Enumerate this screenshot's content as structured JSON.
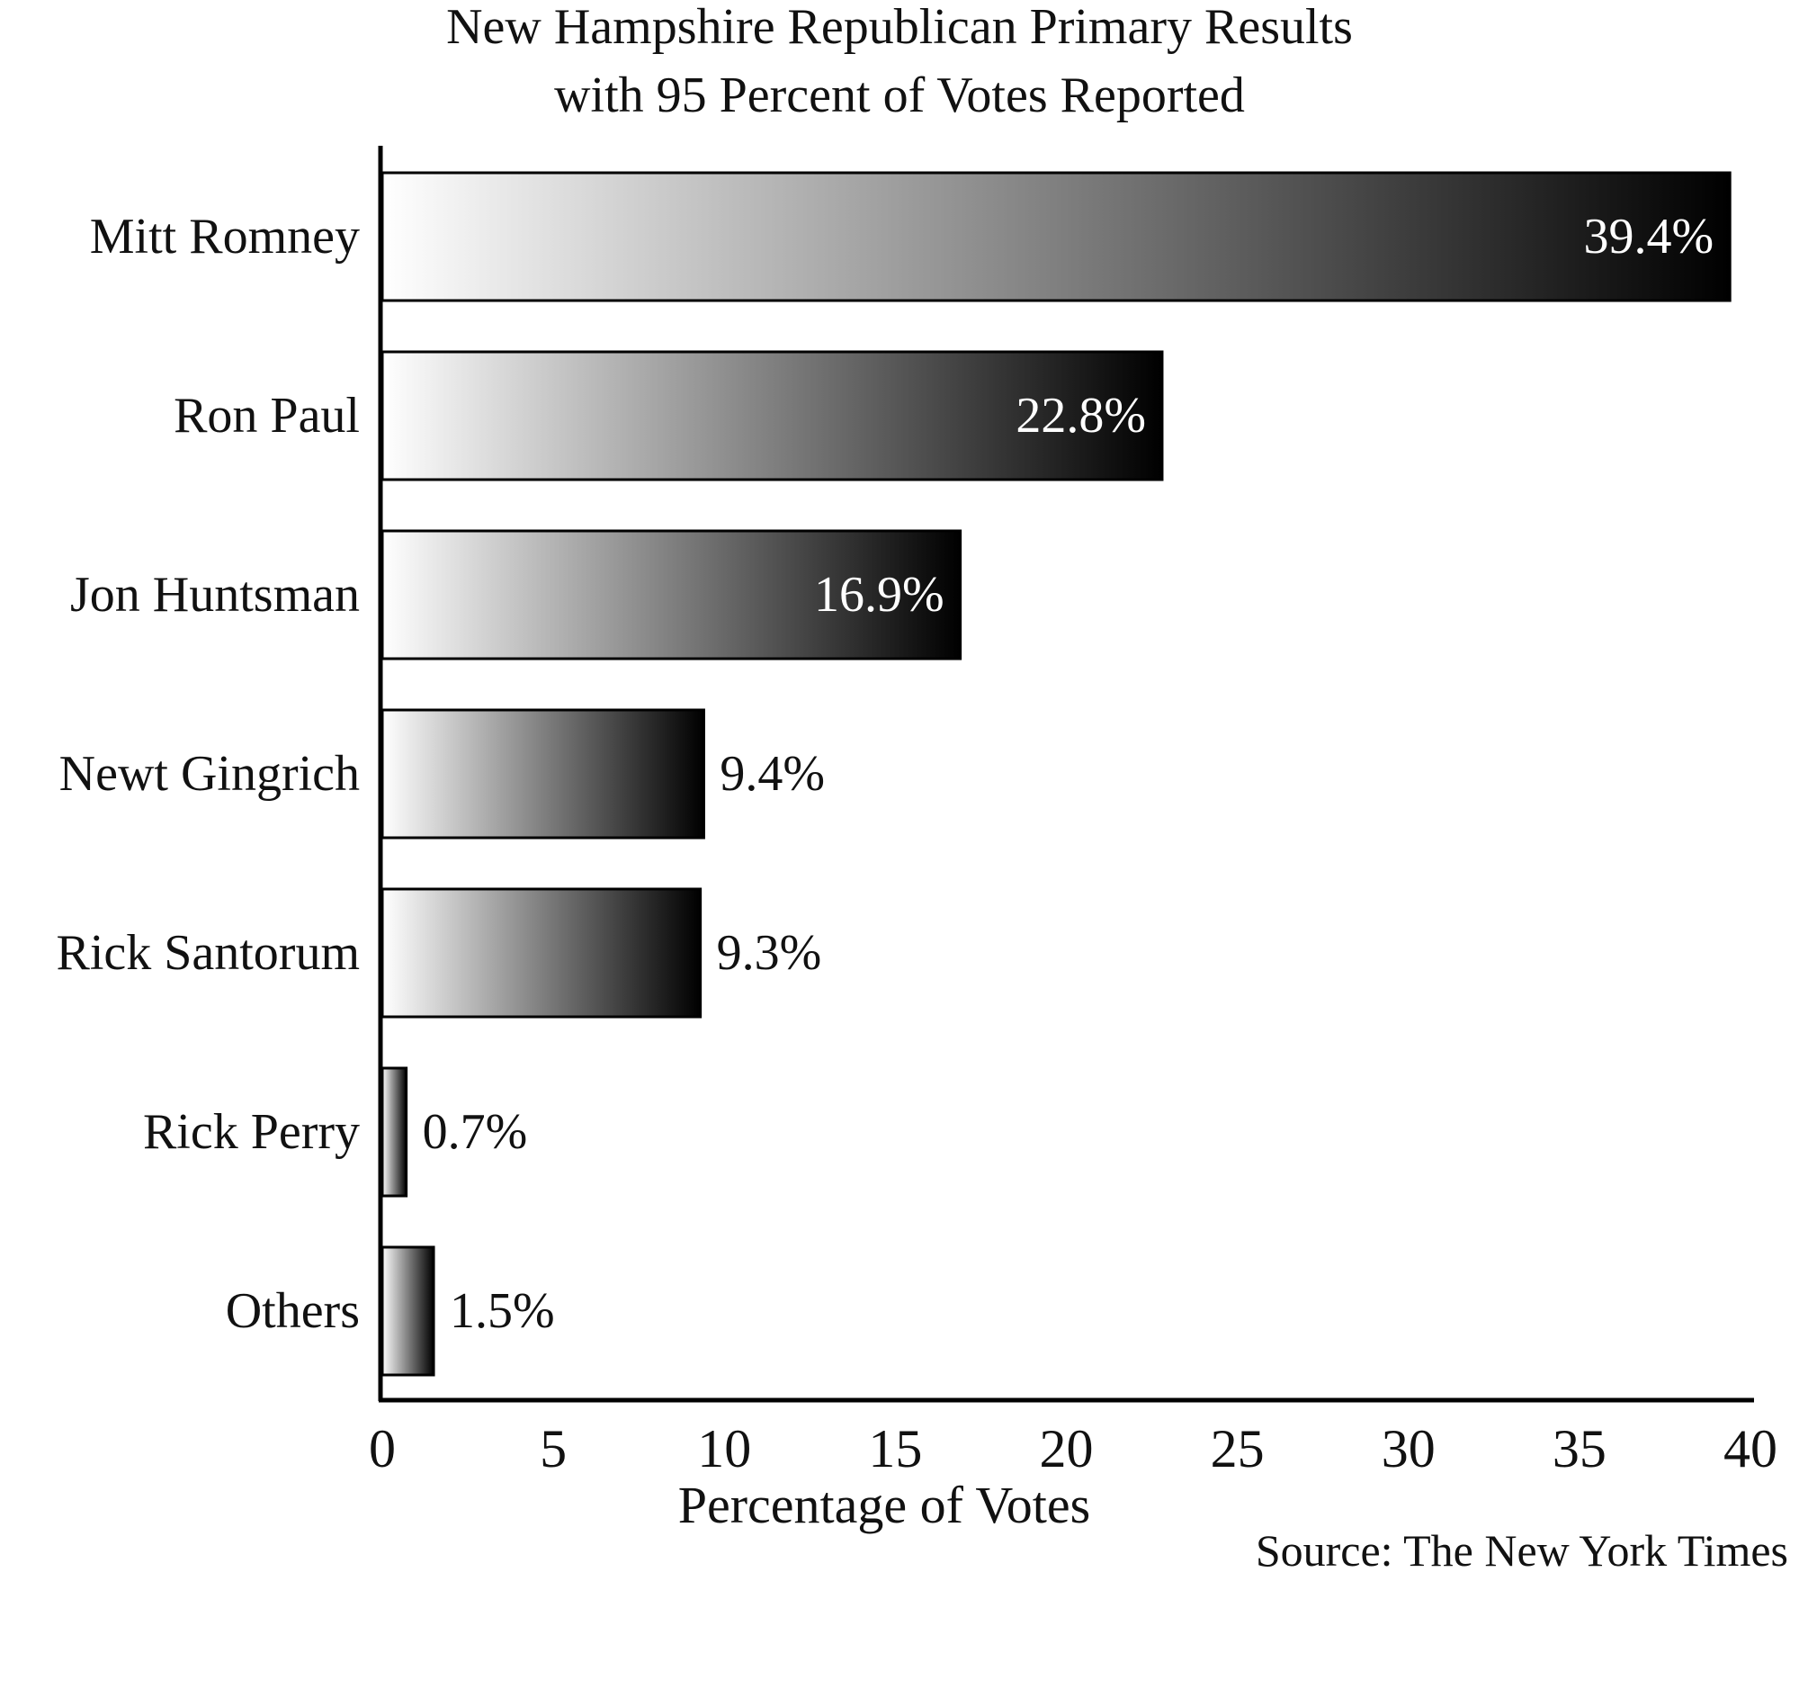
{
  "chart_data": {
    "type": "bar",
    "orientation": "horizontal",
    "title": "New Hampshire Republican Primary Results",
    "subtitle": "with 95 Percent of Votes Reported",
    "xlabel": "Percentage of Votes",
    "ylabel": "",
    "source": "Source: The New York Times",
    "categories": [
      "Mitt Romney",
      "Ron Paul",
      "Jon Huntsman",
      "Newt Gingrich",
      "Rick Santorum",
      "Rick Perry",
      "Others"
    ],
    "values": [
      39.4,
      22.8,
      16.9,
      9.4,
      9.3,
      0.7,
      1.5
    ],
    "value_labels": [
      "39.4%",
      "22.8%",
      "16.9%",
      "9.4%",
      "9.3%",
      "0.7%",
      "1.5%"
    ],
    "xlim": [
      0,
      40
    ],
    "xticks": [
      0,
      5,
      10,
      15,
      20,
      25,
      30,
      35,
      40
    ],
    "xtick_labels": [
      "0",
      "5",
      "10",
      "15",
      "20",
      "25",
      "30",
      "35",
      "40"
    ],
    "grid": false,
    "legend": "none",
    "bar_fill": "gradient white to black",
    "colors": {
      "gradient_start": "#ffffff",
      "gradient_end": "#000000",
      "outline": "#000000",
      "inside_label": "#ffffff",
      "outside_label": "#111111"
    }
  }
}
